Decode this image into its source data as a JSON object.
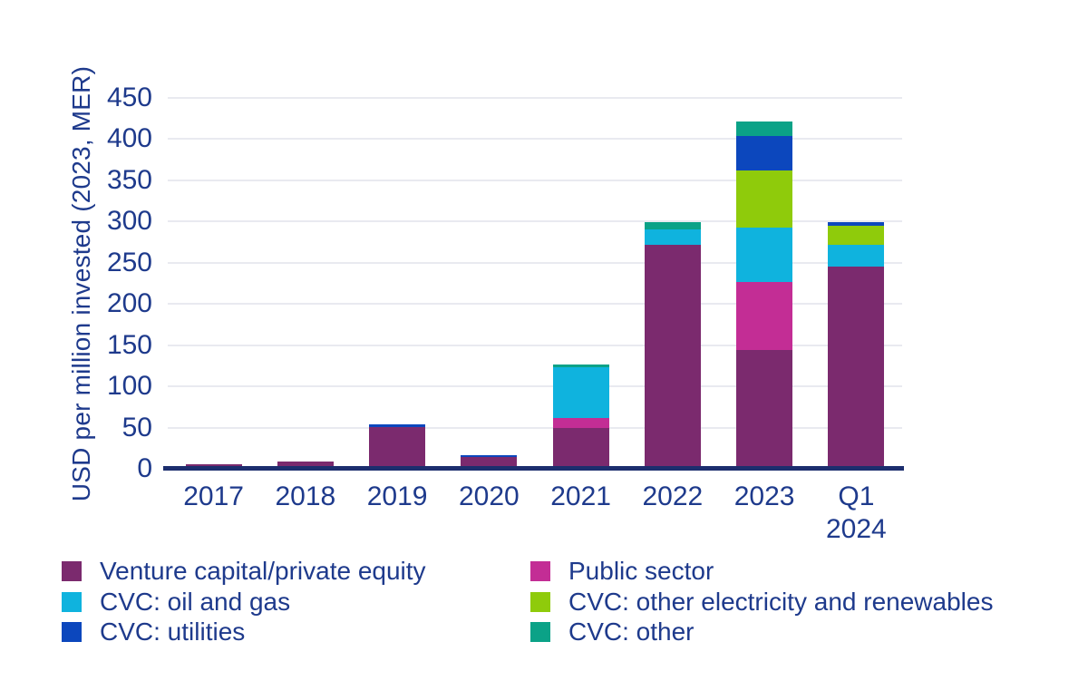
{
  "colors": {
    "text_navy": "#1E3A8C",
    "axis_line": "#1C2E6E",
    "gridline": "#E9EAF0",
    "background": "#ffffff"
  },
  "chart_data": {
    "type": "bar",
    "subtype": "stacked",
    "title": "",
    "xlabel": "",
    "ylabel": "USD per million invested (2023, MER)",
    "ylim": [
      0,
      450
    ],
    "yticks": [
      0,
      50,
      100,
      150,
      200,
      250,
      300,
      350,
      400,
      450
    ],
    "grid": true,
    "legend_position": "bottom",
    "categories": [
      "2017",
      "2018",
      "2019",
      "2020",
      "2021",
      "2022",
      "2023",
      "Q1\n2024"
    ],
    "series": [
      {
        "name": "Venture capital/private equity",
        "color": "#7B2A6E",
        "values": [
          5,
          9,
          51,
          14,
          50,
          272,
          144,
          245
        ]
      },
      {
        "name": "Public sector",
        "color": "#C32D95",
        "values": [
          0,
          0,
          0,
          0,
          12,
          0,
          83,
          0
        ]
      },
      {
        "name": "CVC: oil and gas",
        "color": "#0FB3DE",
        "values": [
          0,
          0,
          0,
          0,
          61,
          18,
          66,
          27
        ]
      },
      {
        "name": "CVC: other electricity and renewables",
        "color": "#8FCB0B",
        "values": [
          0,
          0,
          0,
          0,
          0,
          0,
          69,
          23
        ]
      },
      {
        "name": "CVC: utilities",
        "color": "#0C47BD",
        "values": [
          0,
          0,
          3,
          2,
          0,
          0,
          42,
          4
        ]
      },
      {
        "name": "CVC: other",
        "color": "#0BA287",
        "values": [
          0,
          0,
          0,
          0,
          4,
          9,
          17,
          0
        ]
      }
    ],
    "legend_columns": [
      [
        0,
        2,
        4
      ],
      [
        1,
        3,
        5
      ]
    ]
  }
}
